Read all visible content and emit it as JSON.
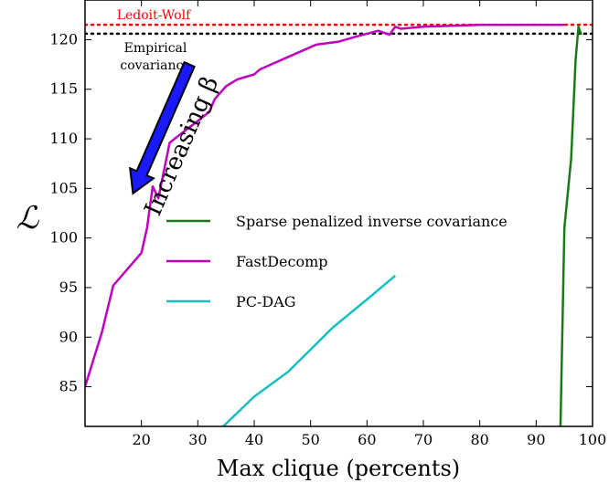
{
  "chart_data": {
    "type": "line",
    "xlabel": "Max clique (percents)",
    "ylabel": "ℒ",
    "xlim": [
      10,
      100
    ],
    "ylim": [
      81,
      124
    ],
    "xticks": [
      "20",
      "30",
      "40",
      "50",
      "60",
      "70",
      "80",
      "90",
      "100"
    ],
    "xtick_values": [
      20,
      30,
      40,
      50,
      60,
      70,
      80,
      90,
      100
    ],
    "yticks": [
      "85",
      "90",
      "95",
      "100",
      "105",
      "110",
      "115",
      "120"
    ],
    "ytick_values": [
      85,
      90,
      95,
      100,
      105,
      110,
      115,
      120
    ],
    "grid": false,
    "legend_position": "center-right",
    "series": [
      {
        "name": "Sparse penalized inverse covariance",
        "color": "#1a7a1a",
        "x": [
          94.3,
          95.0,
          96.2,
          97.0,
          97.5,
          98.0
        ],
        "y": [
          80.8,
          101.0,
          108.0,
          118.0,
          121.3,
          120.5
        ]
      },
      {
        "name": "FastDecomp",
        "color": "#bf00bf",
        "x": [
          10,
          13,
          15,
          20,
          21,
          22,
          23,
          25,
          27,
          30,
          32,
          33,
          35,
          37,
          40,
          41,
          43,
          45,
          47,
          49,
          51,
          55,
          58,
          62,
          64,
          65,
          66,
          68,
          70,
          75,
          80,
          85,
          90,
          95
        ],
        "y": [
          85,
          90.5,
          95.2,
          98.5,
          101,
          105.2,
          104,
          109.6,
          110.5,
          111.8,
          112.7,
          114,
          115.3,
          116,
          116.5,
          117,
          117.5,
          118,
          118.5,
          119,
          119.5,
          119.8,
          120.3,
          120.9,
          120.5,
          121.3,
          121.1,
          121.2,
          121.3,
          121.4,
          121.5,
          121.5,
          121.5,
          121.5
        ]
      },
      {
        "name": "PC-DAG",
        "color": "#17bebe",
        "x": [
          34.5,
          40,
          46,
          54,
          60,
          65
        ],
        "y": [
          81,
          84,
          86.5,
          91,
          93.8,
          96.2
        ]
      }
    ],
    "reference_lines": [
      {
        "name": "Ledoit-Wolf",
        "y": 121.5,
        "color": "#ff0000"
      },
      {
        "name": "Empirical covariance",
        "y": 120.6,
        "color": "#000000"
      }
    ],
    "annotations": [
      {
        "text": "Increasing β",
        "arrow_from": [
          28.5,
          117.5
        ],
        "arrow_to": [
          18.5,
          104.5
        ]
      }
    ]
  }
}
